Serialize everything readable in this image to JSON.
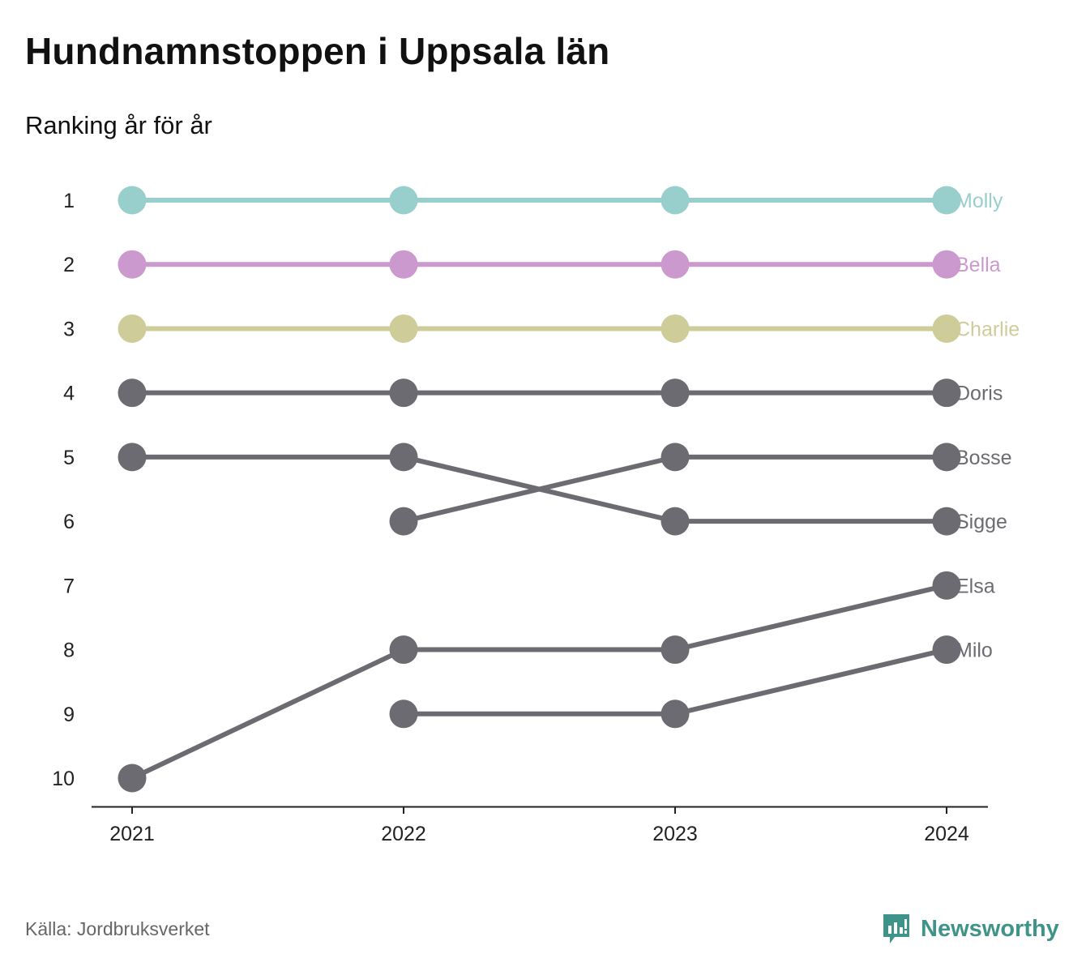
{
  "header": {
    "title": "Hundnamnstoppen i Uppsala län",
    "subtitle": "Ranking år för år"
  },
  "footer": {
    "source": "Källa: Jordbruksverket",
    "brand": "Newsworthy",
    "brand_icon": "newsworthy-logo-icon",
    "brand_color": "#3f948a"
  },
  "chart_data": {
    "type": "line",
    "title": "Hundnamnstoppen i Uppsala län",
    "subtitle": "Ranking år för år",
    "x": [
      "2021",
      "2022",
      "2023",
      "2024"
    ],
    "y_ticks": [
      "1",
      "2",
      "3",
      "4",
      "5",
      "6",
      "7",
      "8",
      "9",
      "10"
    ],
    "ylim": [
      1,
      10
    ],
    "y_reversed": true,
    "grid": false,
    "legend": "direct labels at right end",
    "series": [
      {
        "name": "Molly",
        "values": [
          1,
          1,
          1,
          1
        ],
        "color": "#98cfcd"
      },
      {
        "name": "Bella",
        "values": [
          2,
          2,
          2,
          2
        ],
        "color": "#cc99cf"
      },
      {
        "name": "Charlie",
        "values": [
          3,
          3,
          3,
          3
        ],
        "color": "#cecc98"
      },
      {
        "name": "Doris",
        "values": [
          4,
          4,
          4,
          4
        ],
        "color": "#6c6b72"
      },
      {
        "name": "Bosse",
        "values": [
          null,
          6,
          5,
          5
        ],
        "color": "#6c6b72"
      },
      {
        "name": "Sigge",
        "values": [
          5,
          5,
          6,
          6
        ],
        "color": "#6c6b72"
      },
      {
        "name": "Elsa",
        "values": [
          10,
          8,
          8,
          7
        ],
        "color": "#6c6b72"
      },
      {
        "name": "Milo",
        "values": [
          null,
          9,
          9,
          8
        ],
        "color": "#6c6b72"
      }
    ]
  }
}
